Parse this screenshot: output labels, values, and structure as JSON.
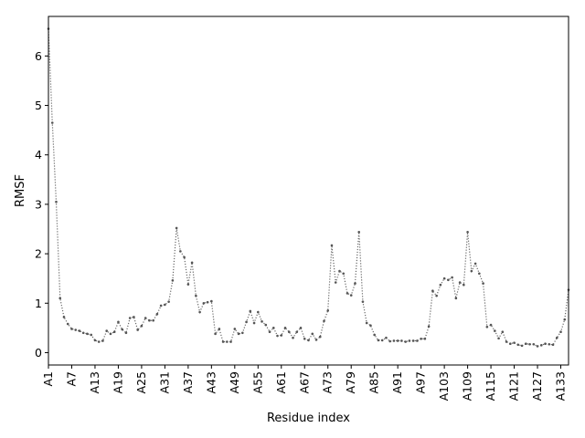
{
  "chart_data": {
    "type": "line",
    "title": "",
    "xlabel": "Residue index",
    "ylabel": "RMSF",
    "ylim": [
      -0.25,
      6.8
    ],
    "y_ticks": [
      0,
      1,
      2,
      3,
      4,
      5,
      6
    ],
    "x_tick_labels": [
      "A1",
      "A7",
      "A13",
      "A19",
      "A25",
      "A31",
      "A37",
      "A43",
      "A49",
      "A55",
      "A61",
      "A67",
      "A73",
      "A79",
      "A85",
      "A91",
      "A97",
      "A103",
      "A109",
      "A115",
      "A121",
      "A127",
      "A133"
    ],
    "x_tick_step": 6,
    "grid": false,
    "legend": "none",
    "series": [
      {
        "color": "#666666",
        "line_style": "dotted",
        "marker": "dot",
        "x_start": 1,
        "values": [
          6.55,
          4.65,
          3.05,
          1.1,
          0.72,
          0.58,
          0.48,
          0.46,
          0.44,
          0.4,
          0.38,
          0.36,
          0.25,
          0.22,
          0.24,
          0.44,
          0.38,
          0.42,
          0.62,
          0.47,
          0.4,
          0.7,
          0.72,
          0.46,
          0.54,
          0.7,
          0.65,
          0.65,
          0.78,
          0.95,
          0.97,
          1.03,
          1.46,
          2.52,
          2.05,
          1.93,
          1.38,
          1.82,
          1.15,
          0.82,
          1.0,
          1.02,
          1.04,
          0.38,
          0.48,
          0.22,
          0.22,
          0.22,
          0.48,
          0.38,
          0.4,
          0.62,
          0.84,
          0.6,
          0.82,
          0.63,
          0.56,
          0.42,
          0.5,
          0.34,
          0.35,
          0.5,
          0.42,
          0.3,
          0.42,
          0.5,
          0.28,
          0.25,
          0.38,
          0.26,
          0.32,
          0.64,
          0.85,
          2.17,
          1.42,
          1.65,
          1.6,
          1.2,
          1.16,
          1.4,
          2.44,
          1.03,
          0.6,
          0.55,
          0.36,
          0.25,
          0.25,
          0.3,
          0.23,
          0.24,
          0.24,
          0.24,
          0.22,
          0.24,
          0.24,
          0.24,
          0.28,
          0.28,
          0.53,
          1.25,
          1.15,
          1.37,
          1.5,
          1.47,
          1.52,
          1.1,
          1.42,
          1.37,
          2.44,
          1.65,
          1.8,
          1.6,
          1.4,
          0.52,
          0.56,
          0.44,
          0.29,
          0.42,
          0.22,
          0.18,
          0.2,
          0.16,
          0.14,
          0.18,
          0.17,
          0.17,
          0.13,
          0.15,
          0.18,
          0.17,
          0.16,
          0.3,
          0.42,
          0.67,
          1.27
        ]
      }
    ]
  }
}
